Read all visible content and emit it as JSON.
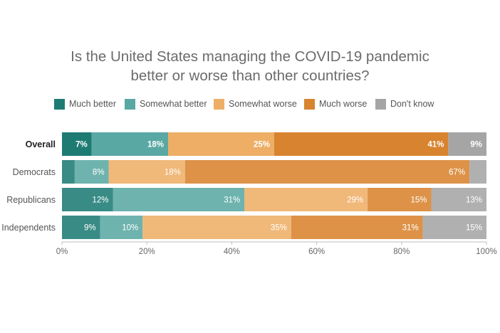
{
  "chart_data": {
    "type": "bar",
    "orientation": "horizontal",
    "stacked": true,
    "title_lines": [
      "Is the United States managing the COVID-19 pandemic",
      "better or worse than other countries?"
    ],
    "categories": [
      "Overall",
      "Democrats",
      "Republicans",
      "Independents"
    ],
    "series": [
      {
        "name": "Much better",
        "color": "#1e7b74",
        "values": [
          7,
          3,
          12,
          9
        ]
      },
      {
        "name": "Somewhat better",
        "color": "#5aa8a3",
        "values": [
          18,
          8,
          31,
          10
        ]
      },
      {
        "name": "Somewhat worse",
        "color": "#eeae66",
        "values": [
          25,
          18,
          29,
          35
        ]
      },
      {
        "name": "Much worse",
        "color": "#d8832f",
        "values": [
          41,
          67,
          15,
          31
        ]
      },
      {
        "name": "Don't know",
        "color": "#a5a5a5",
        "values": [
          9,
          4,
          13,
          15
        ]
      }
    ],
    "data_labels": [
      [
        "7%",
        "18%",
        "25%",
        "41%",
        "9%"
      ],
      [
        "",
        "8%",
        "18%",
        "67%",
        ""
      ],
      [
        "12%",
        "31%",
        "29%",
        "15%",
        "13%"
      ],
      [
        "9%",
        "10%",
        "35%",
        "31%",
        "15%"
      ]
    ],
    "highlight_category": "Overall",
    "xlim": [
      0,
      100
    ],
    "x_ticks": [
      0,
      20,
      40,
      60,
      80,
      100
    ],
    "x_tick_labels": [
      "0%",
      "20%",
      "40%",
      "60%",
      "80%",
      "100%"
    ],
    "legend_position": "top",
    "grid": false
  }
}
